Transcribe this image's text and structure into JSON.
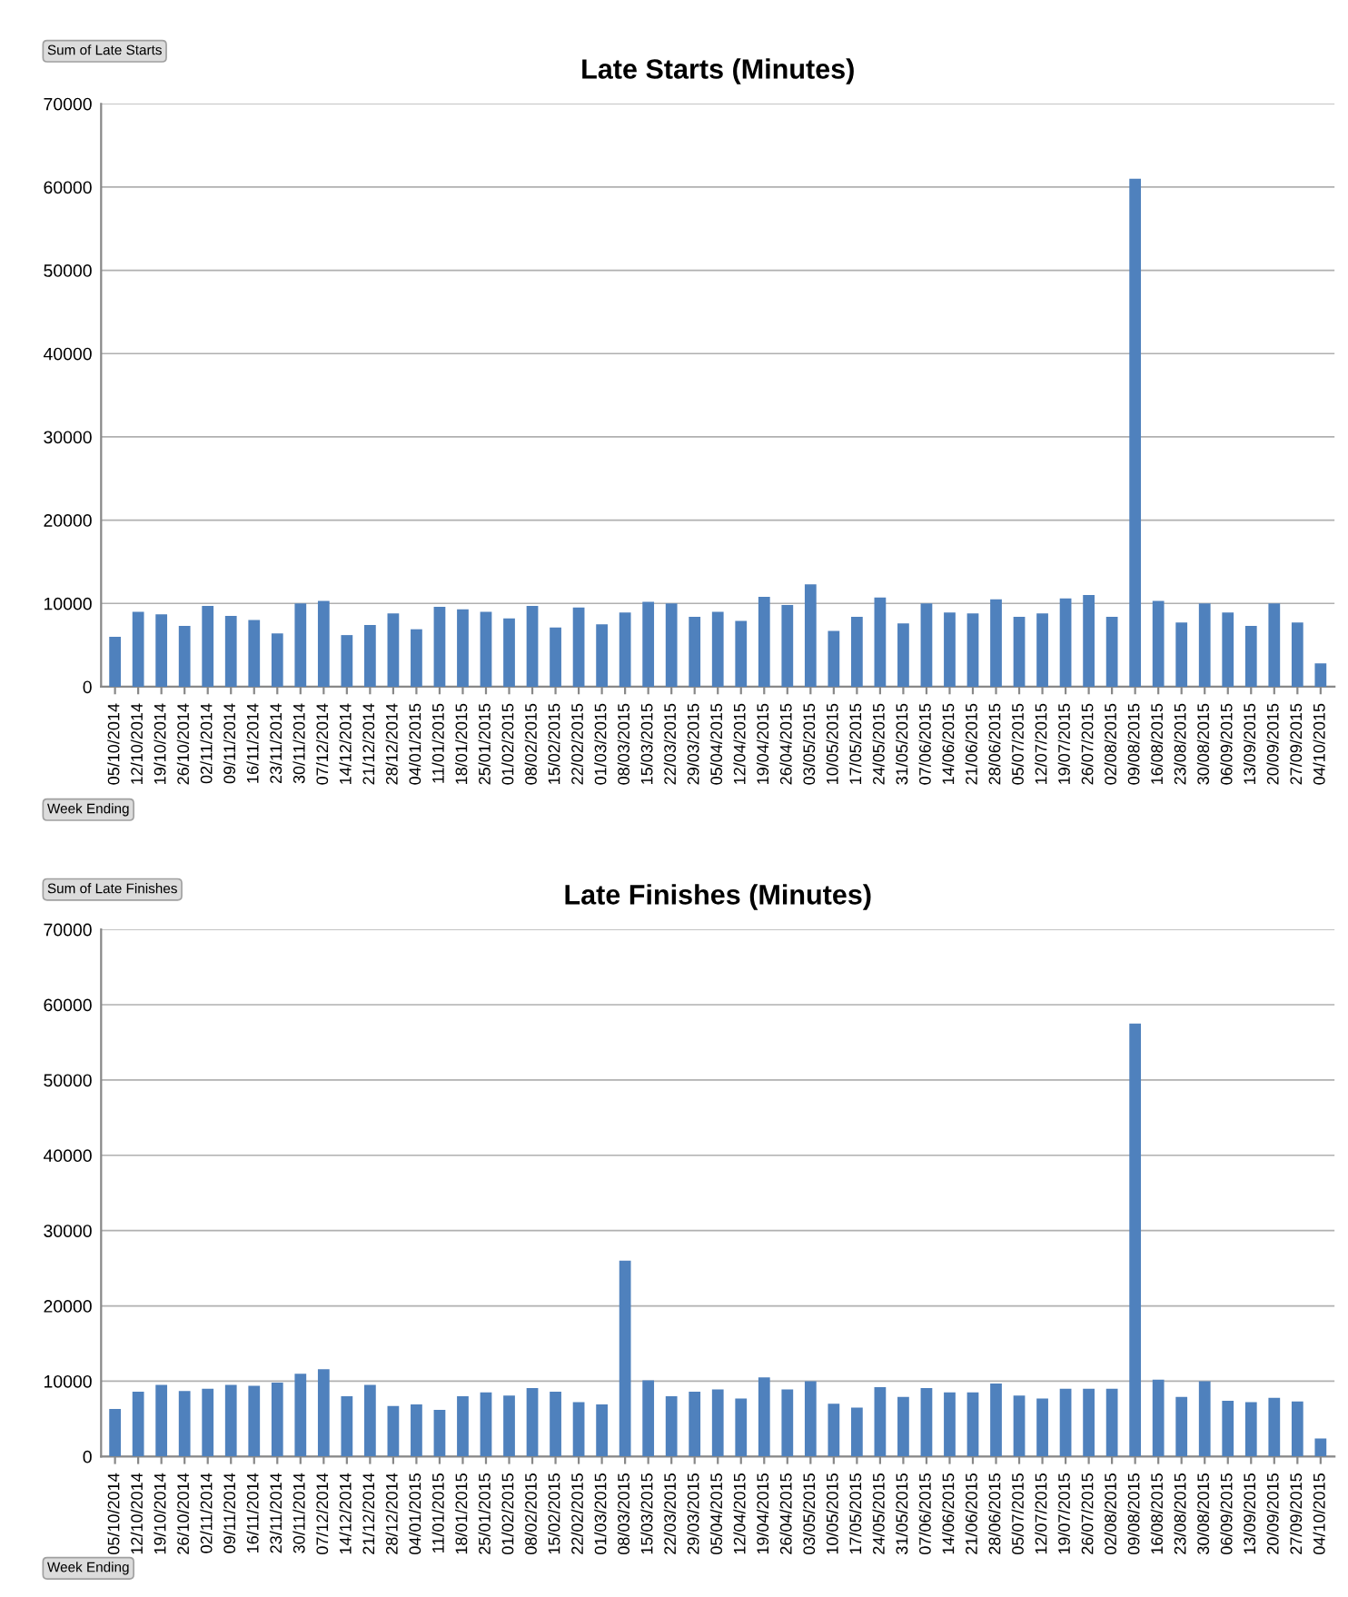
{
  "chart_data": [
    {
      "type": "bar",
      "title": "Late Starts (Minutes)",
      "color": "#4f81bd",
      "grid": "y",
      "legend": false,
      "categories": [
        "05/10/2014",
        "12/10/2014",
        "19/10/2014",
        "26/10/2014",
        "02/11/2014",
        "09/11/2014",
        "16/11/2014",
        "23/11/2014",
        "30/11/2014",
        "07/12/2014",
        "14/12/2014",
        "21/12/2014",
        "28/12/2014",
        "04/01/2015",
        "11/01/2015",
        "18/01/2015",
        "25/01/2015",
        "01/02/2015",
        "08/02/2015",
        "15/02/2015",
        "22/02/2015",
        "01/03/2015",
        "08/03/2015",
        "15/03/2015",
        "22/03/2015",
        "29/03/2015",
        "05/04/2015",
        "12/04/2015",
        "19/04/2015",
        "26/04/2015",
        "03/05/2015",
        "10/05/2015",
        "17/05/2015",
        "24/05/2015",
        "31/05/2015",
        "07/06/2015",
        "14/06/2015",
        "21/06/2015",
        "28/06/2015",
        "05/07/2015",
        "12/07/2015",
        "19/07/2015",
        "26/07/2015",
        "02/08/2015",
        "09/08/2015",
        "16/08/2015",
        "23/08/2015",
        "30/08/2015",
        "06/09/2015",
        "13/09/2015",
        "20/09/2015",
        "27/09/2015",
        "04/10/2015"
      ],
      "values": [
        6000,
        9000,
        8700,
        7300,
        9700,
        8500,
        8000,
        6400,
        10000,
        10300,
        6200,
        7400,
        8800,
        6900,
        9600,
        9300,
        9000,
        8200,
        9700,
        7100,
        9500,
        7500,
        8900,
        10200,
        10000,
        8400,
        9000,
        7900,
        10800,
        9800,
        12300,
        6700,
        8400,
        10700,
        7600,
        10000,
        8900,
        8800,
        10500,
        8400,
        8800,
        10600,
        11000,
        8400,
        61000,
        10300,
        7700,
        10000,
        8900,
        7300,
        10000,
        7700,
        2800
      ],
      "ylim": [
        0,
        70000
      ],
      "yticks": [
        0,
        10000,
        20000,
        30000,
        40000,
        50000,
        60000,
        70000
      ],
      "annotations": [
        "Sum of Late Starts",
        "Week Ending"
      ]
    },
    {
      "type": "bar",
      "title": "Late Finishes (Minutes)",
      "color": "#4f81bd",
      "grid": "y",
      "legend": false,
      "categories": [
        "05/10/2014",
        "12/10/2014",
        "19/10/2014",
        "26/10/2014",
        "02/11/2014",
        "09/11/2014",
        "16/11/2014",
        "23/11/2014",
        "30/11/2014",
        "07/12/2014",
        "14/12/2014",
        "21/12/2014",
        "28/12/2014",
        "04/01/2015",
        "11/01/2015",
        "18/01/2015",
        "25/01/2015",
        "01/02/2015",
        "08/02/2015",
        "15/02/2015",
        "22/02/2015",
        "01/03/2015",
        "08/03/2015",
        "15/03/2015",
        "22/03/2015",
        "29/03/2015",
        "05/04/2015",
        "12/04/2015",
        "19/04/2015",
        "26/04/2015",
        "03/05/2015",
        "10/05/2015",
        "17/05/2015",
        "24/05/2015",
        "31/05/2015",
        "07/06/2015",
        "14/06/2015",
        "21/06/2015",
        "28/06/2015",
        "05/07/2015",
        "12/07/2015",
        "19/07/2015",
        "26/07/2015",
        "02/08/2015",
        "09/08/2015",
        "16/08/2015",
        "23/08/2015",
        "30/08/2015",
        "06/09/2015",
        "13/09/2015",
        "20/09/2015",
        "27/09/2015",
        "04/10/2015"
      ],
      "values": [
        6300,
        8600,
        9500,
        8700,
        9000,
        9500,
        9400,
        9800,
        11000,
        11600,
        8000,
        9500,
        6700,
        6900,
        6200,
        8000,
        8500,
        8100,
        9100,
        8600,
        7200,
        6900,
        26000,
        10100,
        8000,
        8600,
        8900,
        7700,
        10500,
        8900,
        10000,
        7000,
        6500,
        9200,
        7900,
        9100,
        8500,
        8500,
        9700,
        8100,
        7700,
        9000,
        9000,
        9000,
        57500,
        10200,
        7900,
        10000,
        7400,
        7200,
        7800,
        7300,
        2400
      ],
      "ylim": [
        0,
        70000
      ],
      "yticks": [
        0,
        10000,
        20000,
        30000,
        40000,
        50000,
        60000,
        70000
      ],
      "annotations": [
        "Sum of Late Finishes",
        "Week Ending"
      ]
    }
  ]
}
